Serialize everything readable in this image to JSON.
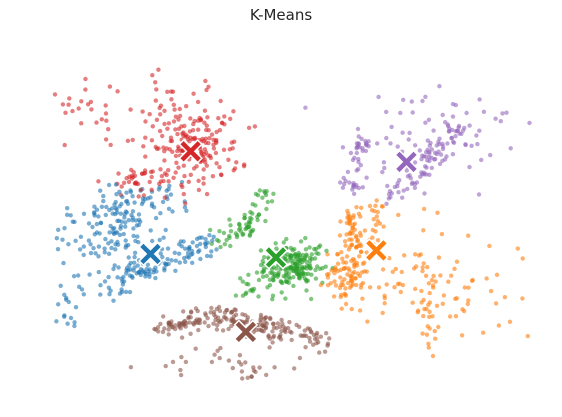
{
  "chart_data": {
    "type": "scatter",
    "title": "K-Means",
    "xlabel": "",
    "ylabel": "",
    "xlim": [
      0,
      100
    ],
    "ylim": [
      0,
      100
    ],
    "grid": false,
    "axes_visible": false,
    "series": [
      {
        "color": "#1f77b4",
        "centroid": [
          24,
          39
        ],
        "regions": [
          {
            "shape": "line",
            "from": [
              12,
              52
            ],
            "to": [
              28,
              55
            ],
            "spread": 3.2,
            "n": 70
          },
          {
            "shape": "line",
            "from": [
              18,
              32
            ],
            "to": [
              37,
              42
            ],
            "spread": 1.8,
            "n": 90
          },
          {
            "shape": "line",
            "from": [
              16,
              27
            ],
            "to": [
              22,
              36
            ],
            "spread": 1.5,
            "n": 25
          },
          {
            "shape": "blob",
            "center": [
              15,
              44
            ],
            "r": [
              9,
              9
            ],
            "n": 95
          },
          {
            "shape": "blob",
            "center": [
              8,
              25
            ],
            "r": [
              3,
              9
            ],
            "n": 18
          }
        ]
      },
      {
        "color": "#ff7f0e",
        "centroid": [
          69,
          40
        ],
        "regions": [
          {
            "shape": "line",
            "from": [
              64,
              52
            ],
            "to": [
              65,
              40
            ],
            "spread": 1.2,
            "n": 45
          },
          {
            "shape": "line",
            "from": [
              70,
              52
            ],
            "to": [
              67,
              40
            ],
            "spread": 1.2,
            "n": 25
          },
          {
            "shape": "blob",
            "center": [
              63,
              33
            ],
            "r": [
              4,
              9
            ],
            "n": 80
          },
          {
            "shape": "blob",
            "center": [
              79,
              28
            ],
            "r": [
              15,
              17
            ],
            "n": 110
          }
        ]
      },
      {
        "color": "#2ca02c",
        "centroid": [
          49,
          38
        ],
        "regions": [
          {
            "shape": "blob",
            "center": [
              52,
              36
            ],
            "r": [
              6,
              7
            ],
            "n": 200
          },
          {
            "shape": "line",
            "from": [
              37,
              42
            ],
            "to": [
              46,
              49
            ],
            "spread": 1.5,
            "n": 45
          },
          {
            "shape": "line",
            "from": [
              44,
              49
            ],
            "to": [
              47,
              57
            ],
            "spread": 1.2,
            "n": 20
          },
          {
            "shape": "blob",
            "center": [
              45,
              29
            ],
            "r": [
              5,
              4
            ],
            "n": 15
          }
        ]
      },
      {
        "color": "#d62728",
        "centroid": [
          32,
          68
        ],
        "regions": [
          {
            "shape": "blob",
            "center": [
              33,
              69
            ],
            "r": [
              9,
              10
            ],
            "n": 160
          },
          {
            "shape": "blob",
            "center": [
              28,
              80
            ],
            "r": [
              12,
              10
            ],
            "n": 40
          },
          {
            "shape": "blob",
            "center": [
              12,
              80
            ],
            "r": [
              8,
              7
            ],
            "n": 22
          },
          {
            "shape": "blob",
            "center": [
              22,
              60
            ],
            "r": [
              7,
              4
            ],
            "n": 40
          }
        ]
      },
      {
        "color": "#9467bd",
        "centroid": [
          75,
          65
        ],
        "regions": [
          {
            "shape": "line",
            "from": [
              72,
              55
            ],
            "to": [
              85,
              74
            ],
            "spread": 1.5,
            "n": 80
          },
          {
            "shape": "line",
            "from": [
              64,
              57
            ],
            "to": [
              66,
              72
            ],
            "spread": 1.2,
            "n": 45
          },
          {
            "shape": "blob",
            "center": [
              80,
              72
            ],
            "r": [
              16,
              14
            ],
            "n": 70
          }
        ]
      },
      {
        "color": "#8c564b",
        "centroid": [
          43,
          17
        ],
        "regions": [
          {
            "shape": "line",
            "from": [
              26,
              18
            ],
            "to": [
              40,
              22
            ],
            "spread": 1.5,
            "n": 90
          },
          {
            "shape": "line",
            "from": [
              40,
              20
            ],
            "to": [
              58,
              15
            ],
            "spread": 1.6,
            "n": 120
          },
          {
            "shape": "blob",
            "center": [
              40,
              8
            ],
            "r": [
              15,
              5
            ],
            "n": 35
          }
        ]
      }
    ]
  }
}
